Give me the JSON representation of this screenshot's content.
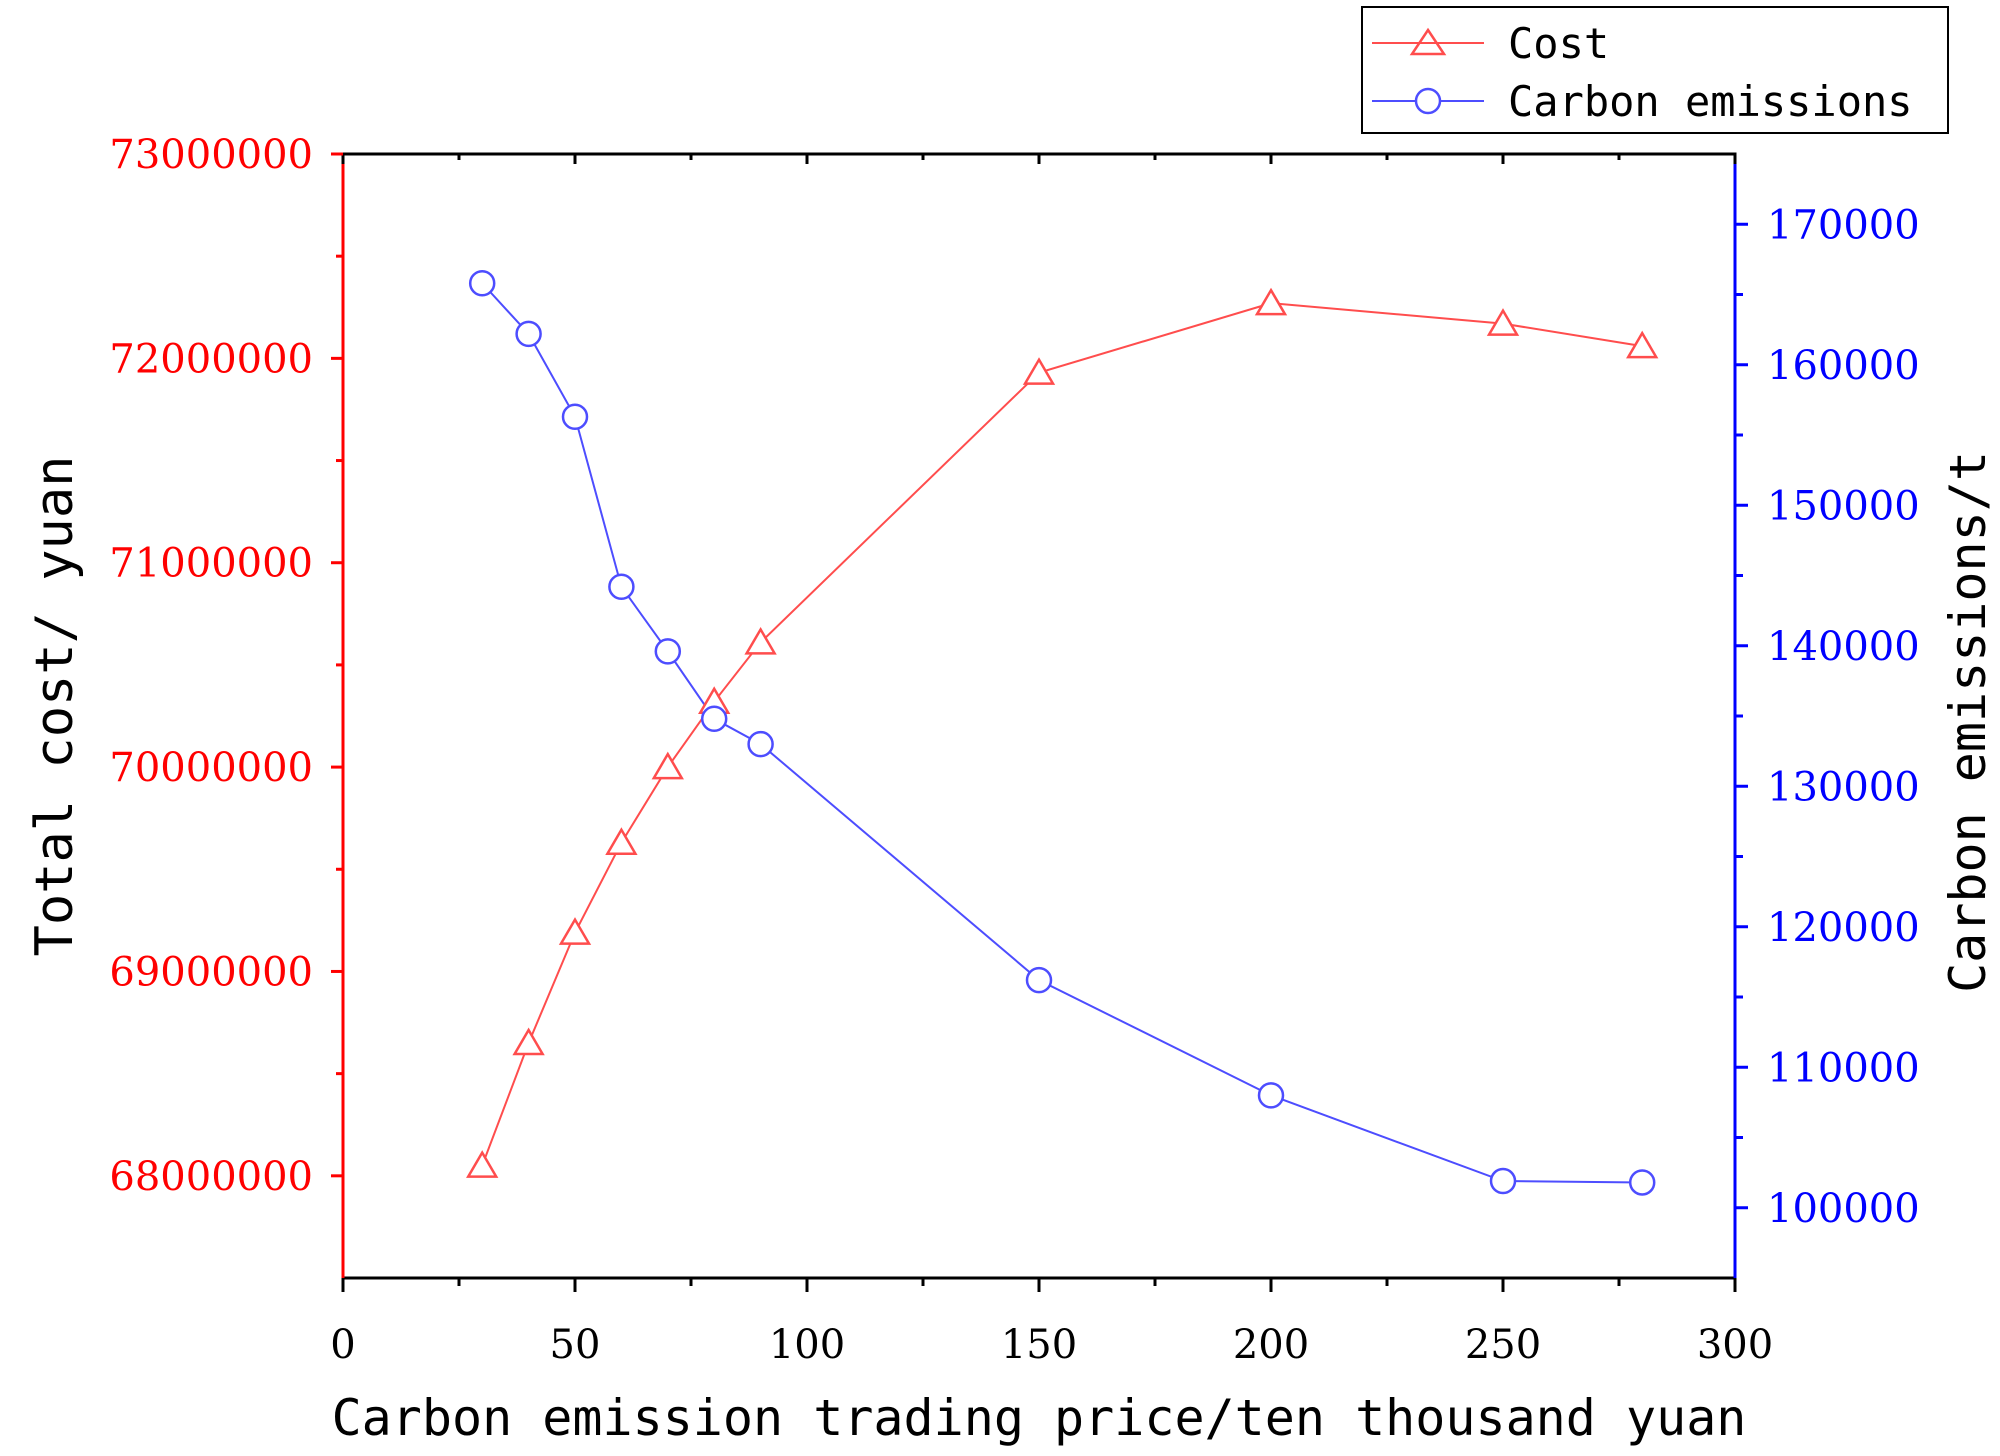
{
  "chart_data": {
    "type": "line",
    "title": "",
    "xlabel": "Carbon emission trading price/ten thousand yuan",
    "ylabel": "Total cost/ yuan",
    "y2label": "Carbon emissions/t",
    "xlim": [
      0,
      300
    ],
    "ylim": [
      67500000,
      73000000
    ],
    "y2lim": [
      95000,
      175000
    ],
    "x_ticks": [
      "0",
      "50",
      "100",
      "150",
      "200",
      "250",
      "300"
    ],
    "y_ticks": [
      "68000000",
      "69000000",
      "70000000",
      "71000000",
      "72000000",
      "73000000"
    ],
    "y2_ticks": [
      "100000",
      "110000",
      "120000",
      "130000",
      "140000",
      "150000",
      "160000",
      "170000"
    ],
    "legend_position": "top-right",
    "colors": {
      "cost": "#ff4d4d",
      "emissions": "#4d4dff",
      "left_axis": "#ff0000",
      "right_axis": "#0000ff"
    },
    "series": [
      {
        "name": "Cost",
        "axis": "left",
        "marker": "triangle",
        "x": [
          30,
          40,
          50,
          60,
          70,
          80,
          90,
          150,
          200,
          250,
          280
        ],
        "values": [
          68050000,
          68650000,
          69190000,
          69630000,
          70000000,
          70320000,
          70610000,
          71930000,
          72270000,
          72170000,
          72060000
        ]
      },
      {
        "name": "Carbon emissions",
        "axis": "right",
        "marker": "circle",
        "x": [
          30,
          40,
          50,
          60,
          70,
          80,
          90,
          150,
          200,
          250,
          280
        ],
        "values": [
          165800,
          162200,
          156300,
          144200,
          139600,
          134800,
          133000,
          116200,
          108000,
          101900,
          101800
        ]
      }
    ]
  }
}
